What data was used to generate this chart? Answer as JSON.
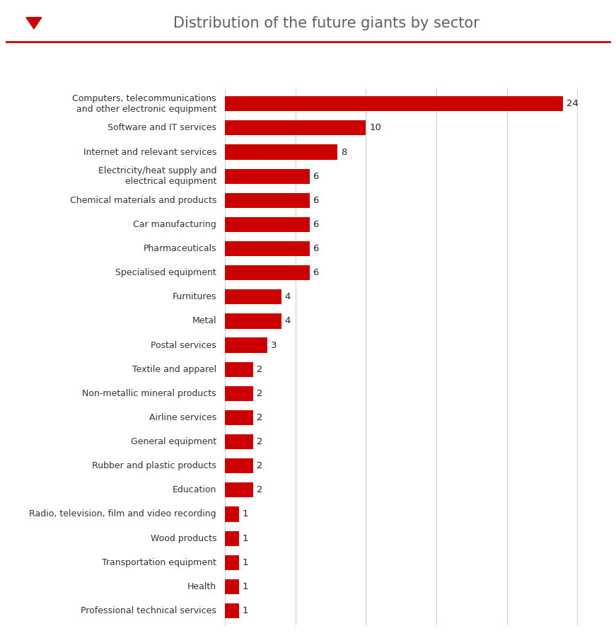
{
  "title": "Distribution of the future giants by sector",
  "categories": [
    "Computers, telecommunications\nand other electronic equipment",
    "Software and IT services",
    "Internet and relevant services",
    "Electricity/heat supply and\nelectrical equipment",
    "Chemical materials and products",
    "Car manufacturing",
    "Pharmaceuticals",
    "Specialised equipment",
    "Furnitures",
    "Metal",
    "Postal services",
    "Textile and apparel",
    "Non-metallic mineral products",
    "Airline services",
    "General equipment",
    "Rubber and plastic products",
    "Education",
    "Radio, television, film and video recording",
    "Wood products",
    "Transportation equipment",
    "Health",
    "Professional technical services"
  ],
  "values": [
    24,
    10,
    8,
    6,
    6,
    6,
    6,
    6,
    4,
    4,
    3,
    2,
    2,
    2,
    2,
    2,
    2,
    1,
    1,
    1,
    1,
    1
  ],
  "bar_color": "#cc0000",
  "title_color": "#606060",
  "value_label_color": "#222222",
  "background_color": "#ffffff",
  "top_line_color": "#cc0000",
  "triangle_color": "#cc0000",
  "xlim": [
    0,
    26
  ],
  "title_fontsize": 15,
  "label_fontsize": 9,
  "value_fontsize": 9.5
}
